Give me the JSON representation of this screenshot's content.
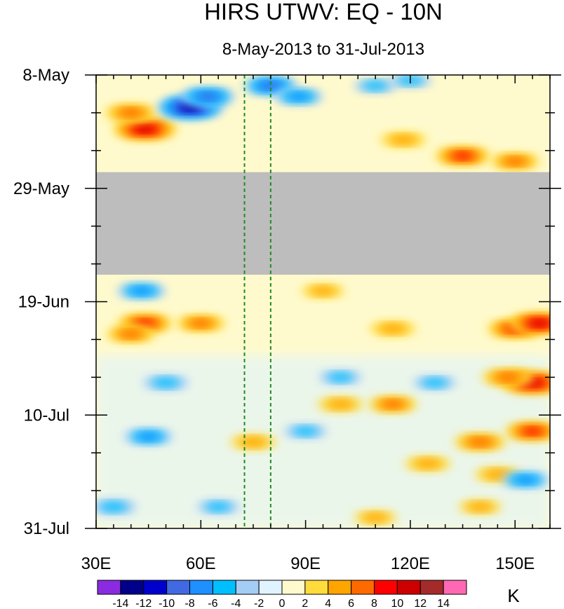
{
  "chart_data": {
    "type": "heatmap",
    "title": "HIRS UTWV: EQ - 10N",
    "subtitle": "8-May-2013 to 31-Jul-2013",
    "x_axis": {
      "range": [
        30,
        160
      ],
      "ticks": [
        30,
        60,
        90,
        120,
        150
      ],
      "tick_labels": [
        "30E",
        "60E",
        "90E",
        "120E",
        "150E"
      ]
    },
    "y_axis": {
      "range_days": [
        0,
        84
      ],
      "ticks_days": [
        0,
        21,
        42,
        63,
        84
      ],
      "tick_labels": [
        "8-May",
        "29-May",
        "19-Jun",
        "10-Jul",
        "31-Jul"
      ]
    },
    "missing_data_days": [
      18,
      37
    ],
    "missing_data_color": "#bdbdbd",
    "reference_lines_lon": [
      72.5,
      80
    ],
    "reference_line_color": "#228B22",
    "colorbar": {
      "levels": [
        -14,
        -12,
        -10,
        -8,
        -6,
        -4,
        -2,
        0,
        2,
        4,
        6,
        8,
        10,
        12,
        14
      ],
      "level_labels": [
        "-14",
        "-12",
        "-10",
        "-8",
        "-6",
        "-4",
        "-2",
        "0",
        "2",
        "4",
        "6",
        "8",
        "10",
        "12",
        "14"
      ],
      "colors": [
        "#8a2be2",
        "#00008b",
        "#0000cd",
        "#4169e1",
        "#1e90ff",
        "#00bfff",
        "#a4cdf5",
        "#dff4ff",
        "#fffacd",
        "#ffdc3c",
        "#ffa500",
        "#ff6a00",
        "#ff0000",
        "#cd0000",
        "#a52a2a",
        "#ff69b4"
      ],
      "units": "K"
    },
    "features": [
      {
        "lon": 44,
        "day": 10,
        "value": 11
      },
      {
        "lon": 40,
        "day": 7,
        "value": 7
      },
      {
        "lon": 57,
        "day": 6,
        "value": -12
      },
      {
        "lon": 62,
        "day": 4,
        "value": -8
      },
      {
        "lon": 80,
        "day": 2,
        "value": -8
      },
      {
        "lon": 88,
        "day": 4,
        "value": -6
      },
      {
        "lon": 110,
        "day": 2,
        "value": -4
      },
      {
        "lon": 120,
        "day": 1,
        "value": -4
      },
      {
        "lon": 135,
        "day": 15,
        "value": 8
      },
      {
        "lon": 150,
        "day": 16,
        "value": 6
      },
      {
        "lon": 118,
        "day": 12,
        "value": 5
      },
      {
        "lon": 44,
        "day": 46,
        "value": 8
      },
      {
        "lon": 40,
        "day": 48,
        "value": 6
      },
      {
        "lon": 60,
        "day": 46,
        "value": 6
      },
      {
        "lon": 43,
        "day": 40,
        "value": -6
      },
      {
        "lon": 95,
        "day": 40,
        "value": 4
      },
      {
        "lon": 115,
        "day": 47,
        "value": 5
      },
      {
        "lon": 150,
        "day": 47,
        "value": 8
      },
      {
        "lon": 157,
        "day": 46,
        "value": 10
      },
      {
        "lon": 155,
        "day": 57,
        "value": 11
      },
      {
        "lon": 148,
        "day": 56,
        "value": 7
      },
      {
        "lon": 115,
        "day": 61,
        "value": 6
      },
      {
        "lon": 100,
        "day": 61,
        "value": 5
      },
      {
        "lon": 140,
        "day": 68,
        "value": 7
      },
      {
        "lon": 155,
        "day": 66,
        "value": 8
      },
      {
        "lon": 125,
        "day": 72,
        "value": 5
      },
      {
        "lon": 145,
        "day": 74,
        "value": 5
      },
      {
        "lon": 50,
        "day": 57,
        "value": -5
      },
      {
        "lon": 45,
        "day": 67,
        "value": -6
      },
      {
        "lon": 90,
        "day": 66,
        "value": -4
      },
      {
        "lon": 100,
        "day": 56,
        "value": -4
      },
      {
        "lon": 153,
        "day": 75,
        "value": -6
      },
      {
        "lon": 35,
        "day": 80,
        "value": -5
      },
      {
        "lon": 75,
        "day": 68,
        "value": 5
      },
      {
        "lon": 127,
        "day": 57,
        "value": -4
      },
      {
        "lon": 140,
        "day": 80,
        "value": 4
      },
      {
        "lon": 65,
        "day": 80,
        "value": -4
      },
      {
        "lon": 110,
        "day": 82,
        "value": 4
      }
    ]
  }
}
